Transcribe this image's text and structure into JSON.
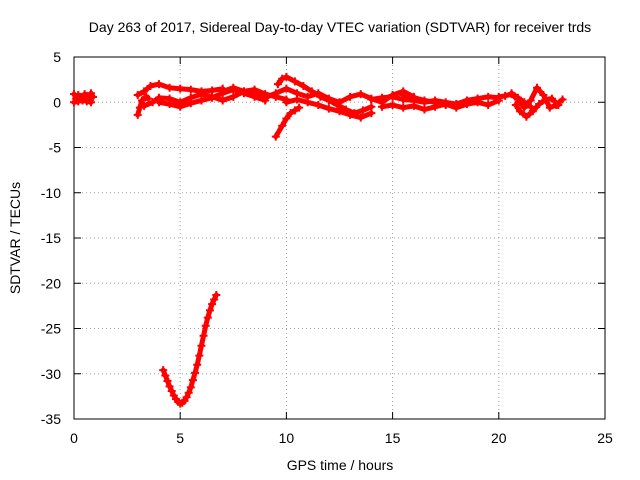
{
  "chart_data": {
    "type": "scatter",
    "title": "Day 263 of 2017, Sidereal Day-to-day VTEC variation (SDTVAR) for receiver trds",
    "xlabel": "GPS time / hours",
    "ylabel": "SDTVAR / TECUs",
    "xlim": [
      0,
      25
    ],
    "ylim": [
      -35,
      5
    ],
    "xticks": [
      0,
      5,
      10,
      15,
      20,
      25
    ],
    "yticks": [
      5,
      0,
      -5,
      -10,
      -15,
      -20,
      -25,
      -30,
      -35
    ],
    "xtick_labels": [
      "0",
      "5",
      "10",
      "15",
      "20",
      "25"
    ],
    "ytick_labels": [
      "5",
      "0",
      "-5",
      "-10",
      "-15",
      "-20",
      "-25",
      "-30",
      "-35"
    ],
    "grid": true,
    "marker": "plus",
    "series": [
      {
        "name": "trds",
        "color": "#ff0000",
        "segments": [
          {
            "x": [
              0.0,
              0.1,
              0.2,
              0.3,
              0.4,
              0.5,
              0.6,
              0.7,
              0.8,
              0.9
            ],
            "y": [
              0.9,
              0.4,
              0.8,
              0.6,
              0.3,
              0.9,
              0.7,
              0.5,
              1.0,
              0.6
            ]
          },
          {
            "x": [
              0.0,
              0.2,
              0.4,
              0.6,
              0.8
            ],
            "y": [
              0.0,
              0.1,
              0.2,
              0.1,
              0.0
            ]
          },
          {
            "x": [
              3.0,
              3.1,
              3.2,
              3.4,
              3.5
            ],
            "y": [
              -1.4,
              -0.6,
              0.2,
              0.6,
              0.4
            ]
          },
          {
            "x": [
              3.0,
              3.3,
              3.6,
              4.0,
              4.5,
              5.0,
              5.5,
              6.0,
              6.5,
              7.0
            ],
            "y": [
              0.8,
              1.2,
              1.8,
              2.0,
              1.6,
              1.5,
              1.4,
              1.2,
              1.3,
              1.5
            ]
          },
          {
            "x": [
              3.3,
              3.7,
              4.0,
              4.5,
              5.0,
              5.5,
              6.0,
              6.5,
              7.0,
              7.5,
              8.0,
              8.5,
              9.0,
              9.5,
              10.0
            ],
            "y": [
              -0.4,
              0.0,
              0.5,
              0.4,
              0.0,
              0.5,
              0.9,
              0.6,
              0.2,
              0.6,
              1.2,
              1.4,
              0.9,
              0.6,
              0.3
            ]
          },
          {
            "x": [
              4.0,
              4.5,
              5.0,
              5.5,
              6.0,
              6.5,
              7.0,
              7.5,
              8.0,
              8.5,
              9.0
            ],
            "y": [
              0.0,
              -0.2,
              -0.5,
              -0.1,
              0.2,
              0.5,
              1.0,
              1.4,
              1.0,
              0.6,
              0.2
            ]
          },
          {
            "x": [
              7.0,
              7.5,
              8.0,
              8.5,
              9.0,
              9.5,
              10.0,
              10.5,
              11.0,
              11.5,
              12.0,
              12.5,
              13.0,
              13.5,
              14.0,
              14.5,
              15.0,
              15.5,
              16.0
            ],
            "y": [
              1.2,
              1.6,
              1.2,
              0.8,
              0.5,
              1.0,
              1.5,
              1.0,
              0.6,
              1.0,
              0.4,
              0.0,
              0.6,
              0.9,
              0.4,
              0.0,
              0.8,
              1.2,
              0.6
            ]
          },
          {
            "x": [
              9.5,
              9.8,
              10.0,
              10.2,
              10.4,
              10.6
            ],
            "y": [
              -3.8,
              -2.6,
              -1.8,
              -1.2,
              -0.9,
              -0.6
            ]
          },
          {
            "x": [
              9.6,
              9.8,
              10.0,
              10.4,
              10.8,
              11.2,
              11.6,
              12.0,
              12.4,
              12.8,
              13.2,
              13.6,
              14.0
            ],
            "y": [
              2.0,
              2.6,
              2.8,
              2.3,
              1.8,
              1.2,
              0.6,
              0.2,
              -0.3,
              -0.8,
              -1.2,
              -0.9,
              -0.5
            ]
          },
          {
            "x": [
              10.0,
              10.5,
              11.0,
              11.5,
              12.0,
              12.5,
              13.0,
              13.5,
              14.0
            ],
            "y": [
              0.0,
              0.3,
              0.0,
              -0.3,
              -0.7,
              -1.0,
              -1.4,
              -1.7,
              -1.2
            ]
          },
          {
            "x": [
              14.0,
              14.5,
              15.0,
              15.5,
              16.0,
              16.5,
              17.0,
              17.5,
              18.0,
              18.5,
              19.0,
              19.5,
              20.0
            ],
            "y": [
              0.3,
              0.5,
              0.6,
              0.3,
              0.2,
              0.0,
              0.2,
              0.0,
              -0.2,
              0.2,
              0.4,
              0.6,
              0.5
            ]
          },
          {
            "x": [
              14.5,
              15.0,
              15.5,
              16.0,
              16.5,
              17.0,
              17.5,
              18.0,
              18.5,
              19.0,
              19.5,
              20.0
            ],
            "y": [
              -0.5,
              -0.3,
              -0.6,
              -0.4,
              -0.8,
              -0.5,
              -0.2,
              -0.6,
              -0.2,
              0.0,
              -0.3,
              0.2
            ]
          },
          {
            "x": [
              15.5,
              16.0,
              16.5,
              17.0,
              17.5,
              18.0,
              18.5,
              19.0
            ],
            "y": [
              0.8,
              0.5,
              0.2,
              0.0,
              -0.3,
              -0.2,
              0.1,
              0.4
            ]
          },
          {
            "x": [
              20.0,
              20.3,
              20.6,
              20.9,
              21.2,
              21.5,
              21.8,
              22.1,
              22.4,
              22.7,
              23.0
            ],
            "y": [
              0.6,
              0.7,
              0.9,
              0.3,
              -0.6,
              0.2,
              1.6,
              0.8,
              -0.6,
              -0.3,
              0.3
            ]
          },
          {
            "x": [
              20.8,
              21.0,
              21.3,
              21.6,
              21.9,
              22.2,
              22.5,
              22.8
            ],
            "y": [
              -0.3,
              -1.0,
              -1.6,
              -1.0,
              -0.2,
              0.3,
              0.4,
              -0.3
            ]
          },
          {
            "x": [
              20.6,
              20.9,
              21.2,
              21.5
            ],
            "y": [
              1.0,
              0.5,
              0.0,
              -0.5
            ]
          },
          {
            "x": [
              4.2,
              4.3,
              4.4,
              4.5,
              4.6,
              4.7,
              4.8,
              4.9,
              5.0,
              5.1,
              5.2,
              5.3,
              5.4,
              5.5,
              5.6,
              5.7,
              5.8,
              5.9,
              6.0,
              6.1,
              6.2,
              6.3,
              6.4,
              6.5,
              6.6,
              6.7
            ],
            "y": [
              -29.6,
              -30.2,
              -30.8,
              -31.4,
              -31.9,
              -32.4,
              -32.8,
              -33.1,
              -33.3,
              -33.2,
              -33.0,
              -32.6,
              -32.1,
              -31.5,
              -30.7,
              -29.9,
              -29.0,
              -28.0,
              -26.9,
              -25.8,
              -24.7,
              -23.8,
              -23.0,
              -22.3,
              -21.8,
              -21.3
            ]
          }
        ]
      }
    ]
  }
}
